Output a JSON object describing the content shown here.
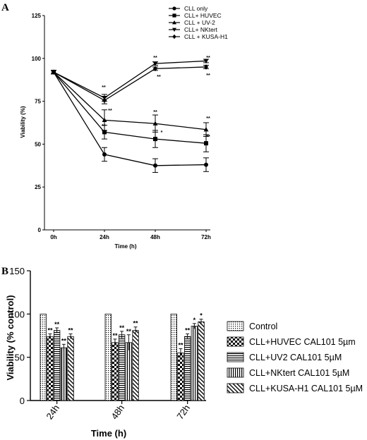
{
  "chart_data": [
    {
      "panel": "A",
      "type": "line",
      "xlabel": "Time (h)",
      "ylabel": "Viability (%)",
      "categories": [
        "0h",
        "24h",
        "48h",
        "72h"
      ],
      "ylim": [
        0,
        125
      ],
      "yticks": [
        0,
        25,
        50,
        75,
        100,
        125
      ],
      "legend_position": "top-right",
      "grid": false,
      "series": [
        {
          "name": "CLL only",
          "marker": "circle",
          "values": [
            92,
            44,
            37.5,
            38
          ],
          "errors": [
            1,
            4,
            4,
            4
          ],
          "annotations": [
            "",
            "",
            "",
            ""
          ]
        },
        {
          "name": "CLL+ HUVEC",
          "marker": "square",
          "values": [
            92,
            57,
            53,
            50.5
          ],
          "errors": [
            1,
            4,
            5,
            5
          ],
          "annotations": [
            "",
            "**",
            "*",
            "**"
          ]
        },
        {
          "name": "CLL + UV-2",
          "marker": "triangle-up",
          "values": [
            92,
            64,
            62,
            58.5
          ],
          "errors": [
            1,
            6,
            5,
            4
          ],
          "annotations": [
            "",
            "**",
            "**",
            "**"
          ]
        },
        {
          "name": "CLL+ NKtert",
          "marker": "triangle-down",
          "values": [
            92,
            77,
            97,
            98.5
          ],
          "errors": [
            1,
            2,
            1,
            1
          ],
          "annotations": [
            "",
            "**",
            "**",
            "**"
          ]
        },
        {
          "name": "CLL + KUSA-H1",
          "marker": "diamond",
          "values": [
            92,
            75.5,
            94,
            95
          ],
          "errors": [
            1,
            2,
            1,
            1
          ],
          "annotations": [
            "",
            "**",
            "**",
            "**"
          ]
        }
      ]
    },
    {
      "panel": "B",
      "type": "bar",
      "xlabel": "Time (h)",
      "ylabel": "Viability (% control)",
      "categories": [
        "24h",
        "48h",
        "72h"
      ],
      "ylim": [
        0,
        150
      ],
      "yticks": [
        0,
        50,
        100,
        150
      ],
      "legend_position": "right",
      "grid": false,
      "series": [
        {
          "name": "Control",
          "pattern": "dots",
          "values": [
            100,
            100,
            100
          ],
          "errors": [
            0,
            0,
            0
          ],
          "annotations": [
            "",
            "",
            ""
          ]
        },
        {
          "name": "CLL+HUVEC CAL101 5µm",
          "pattern": "checker",
          "values": [
            74,
            67,
            55
          ],
          "errors": [
            3,
            4,
            5
          ],
          "annotations": [
            "**",
            "**",
            "**"
          ]
        },
        {
          "name": "CLL+UV2 CAL101 5µM",
          "pattern": "hlines",
          "values": [
            81,
            76,
            74
          ],
          "errors": [
            3,
            4,
            3
          ],
          "annotations": [
            "**",
            "**",
            "**"
          ]
        },
        {
          "name": "CLL+NKtert CAL101 5µM",
          "pattern": "vlines",
          "values": [
            61,
            67,
            86
          ],
          "errors": [
            4,
            9,
            3
          ],
          "annotations": [
            "**",
            "**",
            "*"
          ]
        },
        {
          "name": "CLL+KUSA-H1 CAL101 5µM",
          "pattern": "diag",
          "values": [
            74,
            81,
            91
          ],
          "errors": [
            3,
            4,
            3
          ],
          "annotations": [
            "**",
            "**",
            "*"
          ]
        }
      ]
    }
  ],
  "panels": {
    "a": {
      "letter": "A"
    },
    "b": {
      "letter": "B"
    }
  }
}
